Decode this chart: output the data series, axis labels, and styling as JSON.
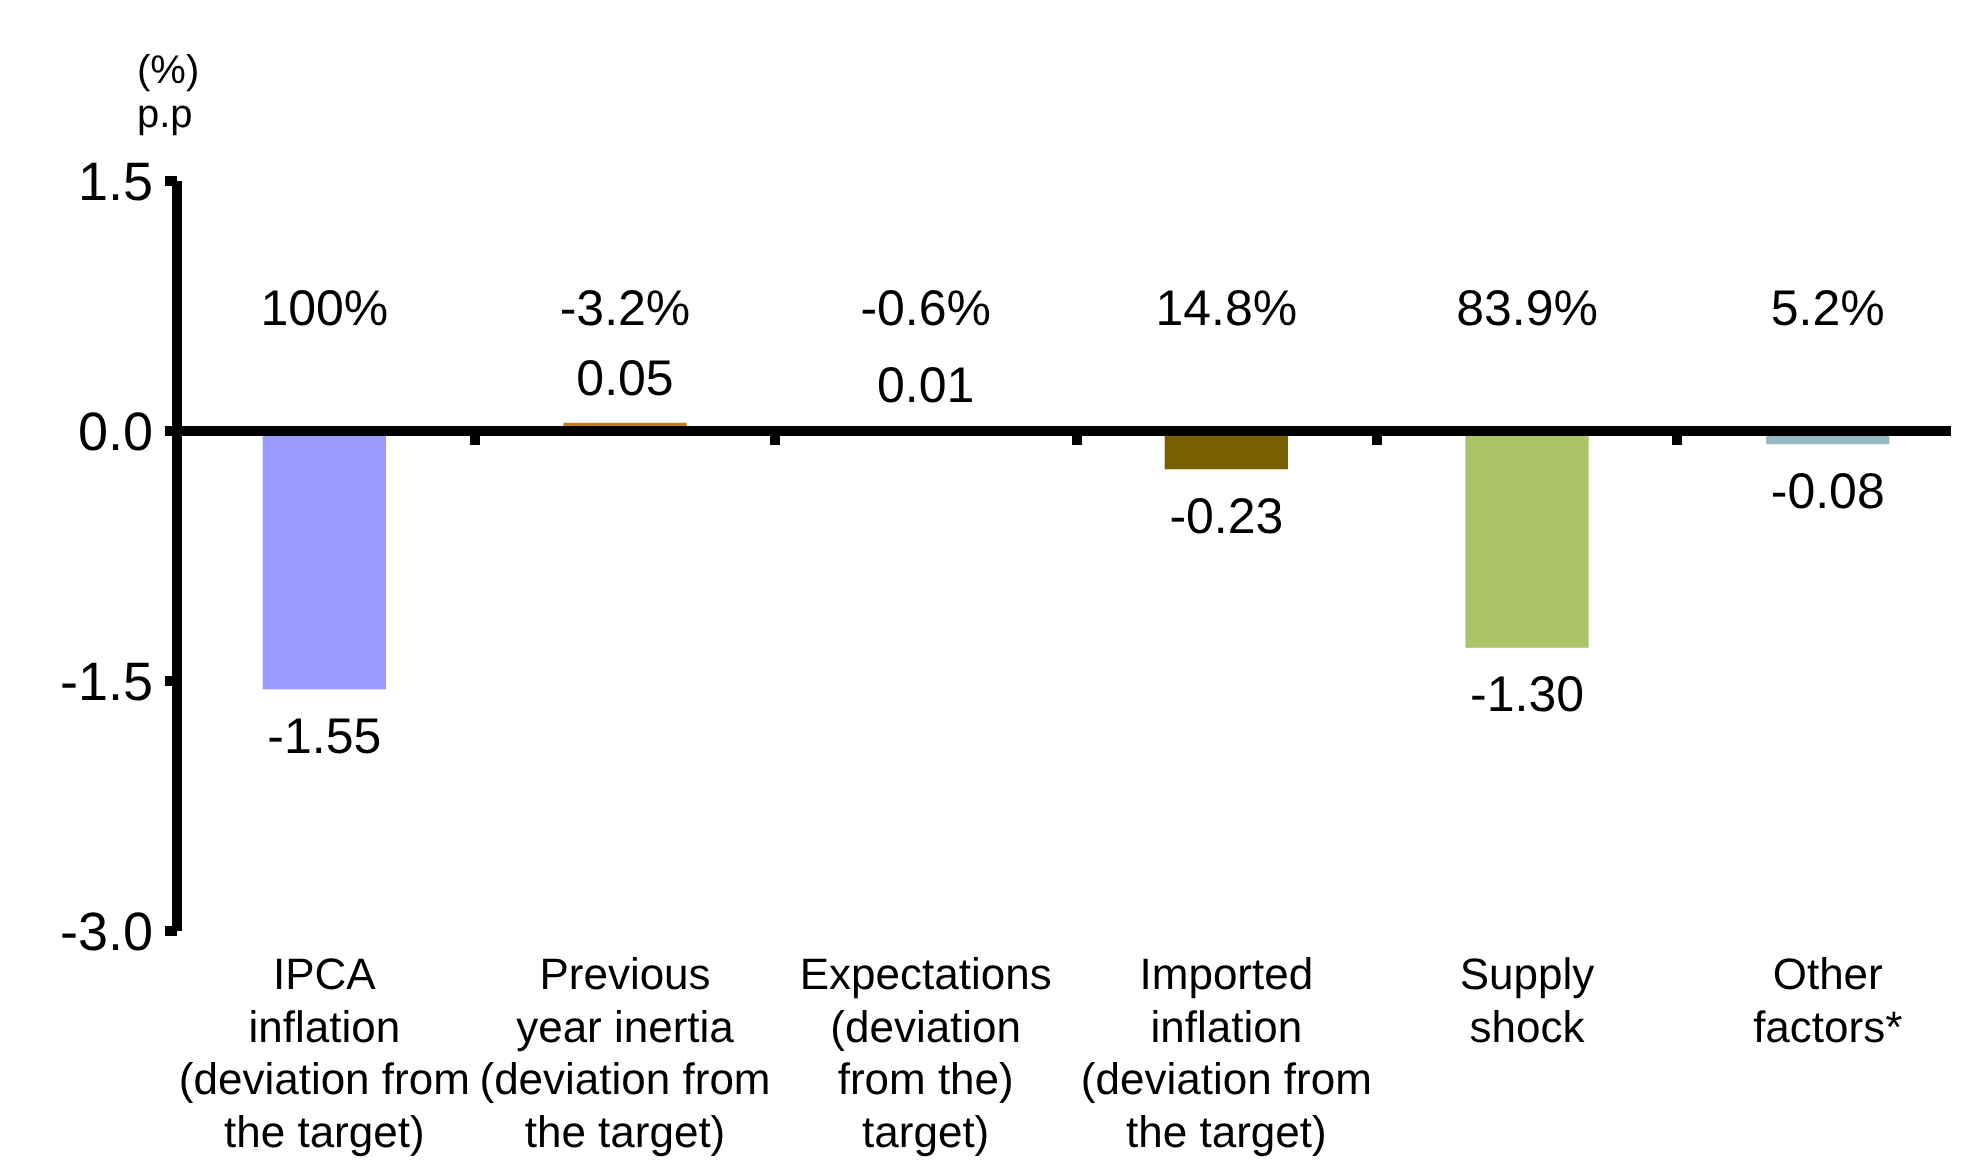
{
  "chart_data": {
    "type": "bar",
    "ylabel": "(%)\np.p",
    "categories": [
      "IPCA\ninflation\n(deviation from\nthe target)",
      "Previous\nyear inertia\n(deviation from\nthe target)",
      "Expectations\n(deviation\nfrom the)\ntarget)",
      "Imported\ninflation\n(deviation from\nthe target)",
      "Supply\nshock",
      "Other\nfactors*"
    ],
    "values": [
      -1.55,
      0.05,
      0.01,
      -0.23,
      -1.3,
      -0.08
    ],
    "colors": [
      "#9999ff",
      "#c0802a",
      "#c0802a",
      "#786000",
      "#abc468",
      "#97b9c6"
    ],
    "value_labels": [
      "-1.55",
      "0.05",
      "0.01",
      "-0.23",
      "-1.30",
      "-0.08"
    ],
    "annotations": [
      "100%",
      "-3.2%",
      "-0.6%",
      "14.8%",
      "83.9%",
      "5.2%"
    ],
    "ylim": [
      -3,
      1.5
    ],
    "yticks": [
      1.5,
      {
        "value": 0,
        "label": "0.0"
      },
      -1.5,
      {
        "value": -3,
        "label": "-3.0"
      }
    ]
  }
}
